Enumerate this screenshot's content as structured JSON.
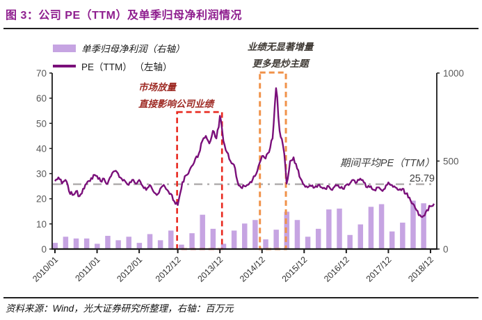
{
  "header": {
    "title": "图 3：公司 PE（TTM）及单季归母净利润情况"
  },
  "legend": {
    "bar_label": "单季归母净利润（右轴）",
    "line_label": "PE（TTM） （左轴）"
  },
  "annotations": {
    "red_note_line1": "市场放量",
    "red_note_line2": "直接影响公司业绩",
    "orange_note_line1": "业绩无显著增量",
    "orange_note_line2": "更多是炒主题",
    "avg_label": "期间平均PE（TTM）",
    "avg_value": "25.79"
  },
  "footer": {
    "source": "资料来源：Wind，光大证券研究所整理，右轴：百万元"
  },
  "colors": {
    "title": "#8e1d8e",
    "bar": "#c6a4e2",
    "pe_line": "#7a0f7a",
    "avg_line": "#b3b0b0",
    "red_box": "#e8281e",
    "orange_box": "#f0924a",
    "red_text": "#9e2b25",
    "dark_text": "#3f3a35",
    "axis": "#1a1a1a",
    "tick_label": "#595959"
  },
  "chart_data": {
    "type": "line+bar",
    "title": "公司 PE（TTM）及单季归母净利润情况",
    "left_axis": {
      "series": "PE (TTM)",
      "ticks": [
        0,
        10,
        20,
        30,
        40,
        50,
        60,
        70
      ],
      "range": [
        0,
        70
      ]
    },
    "right_axis": {
      "series": "单季归母净利润（百万元）",
      "ticks": [
        0,
        500,
        1000
      ],
      "range": [
        0,
        1000
      ]
    },
    "x_start": "2010/01",
    "x_interval": "1 month",
    "x_tick_labels": [
      {
        "label": "2010/01",
        "month": 0
      },
      {
        "label": "2011/01",
        "month": 12
      },
      {
        "label": "2012/01",
        "month": 24
      },
      {
        "label": "2012/12",
        "month": 35
      },
      {
        "label": "2013/12",
        "month": 47
      },
      {
        "label": "2014/12",
        "month": 59
      },
      {
        "label": "2015/12",
        "month": 71
      },
      {
        "label": "2016/12",
        "month": 83
      },
      {
        "label": "2017/12",
        "month": 95
      },
      {
        "label": "2018/12",
        "month": 107
      }
    ],
    "pe_average": 25.79,
    "pe_monthly": [
      27,
      28.5,
      26,
      27.5,
      23,
      21.5,
      23,
      21,
      24,
      26,
      27,
      29.5,
      29,
      27,
      28,
      26,
      29,
      31,
      30,
      28,
      27,
      25.5,
      27.5,
      26,
      27.5,
      25,
      23.5,
      25.5,
      23,
      21.5,
      24,
      25.5,
      23.5,
      22,
      19,
      17.5,
      24,
      29,
      30,
      33,
      36,
      38,
      43,
      45,
      42,
      47,
      44,
      53,
      43,
      38.5,
      35,
      33.5,
      27,
      24.5,
      25,
      25.5,
      26.5,
      29,
      33,
      37,
      36,
      38.5,
      44,
      64,
      47,
      41,
      26,
      35,
      36.5,
      32,
      28,
      25.5,
      24.5,
      25,
      24.5,
      25.5,
      24.5,
      24,
      25,
      23.5,
      25.5,
      24.5,
      24,
      25.5,
      26,
      27.5,
      26.5,
      28,
      26.5,
      24.5,
      25,
      23.5,
      24.5,
      23.5,
      24,
      26.5,
      25.5,
      24.5,
      23.5,
      24,
      22,
      20.5,
      18,
      15.5,
      13.5,
      13.2,
      15.5,
      17,
      18
    ],
    "bars_start_quarter": "2010Q1",
    "bars_quarterly_million_yuan": [
      35,
      70,
      60,
      60,
      30,
      75,
      50,
      70,
      35,
      85,
      50,
      105,
      25,
      90,
      195,
      115,
      30,
      105,
      145,
      165,
      55,
      110,
      212,
      165,
      70,
      115,
      225,
      230,
      80,
      140,
      240,
      255,
      100,
      150,
      275,
      260
    ],
    "highlight_boxes": [
      {
        "name": "red-box",
        "from_month": 34.8,
        "to_month": 47.6,
        "pe_top": 54.5
      },
      {
        "name": "orange-box",
        "from_month": 58.4,
        "to_month": 65.8,
        "pe_top": 70.2
      }
    ],
    "grid": false,
    "legend_position": "top-left"
  }
}
